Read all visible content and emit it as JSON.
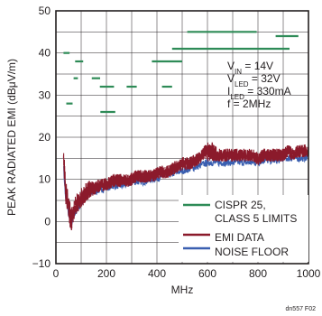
{
  "chart_data": {
    "type": "line",
    "xlabel": "MHz",
    "ylabel": "PEAK RADIATED EMI (dBμV/m)",
    "xlim": [
      0,
      1000
    ],
    "ylim": [
      -10,
      50
    ],
    "xticks": [
      0,
      200,
      400,
      600,
      800,
      1000
    ],
    "yticks": [
      -10,
      0,
      10,
      20,
      30,
      40,
      50
    ],
    "grid": true,
    "legend_position": "bottom-right",
    "annotations": [
      {
        "main": "V",
        "sub": "IN",
        "rest": " = 14V"
      },
      {
        "main": "V",
        "sub": "LED",
        "rest": " = 32V"
      },
      {
        "main": "I",
        "sub": "LED",
        "rest": " = 330mA"
      },
      {
        "main": "f = 2MHz",
        "sub": "",
        "rest": ""
      }
    ],
    "figure_id": "dn557 F02",
    "colors": {
      "limits": "#2e8b57",
      "emi": "#8b1a2b",
      "noise": "#3a5fb0",
      "grid": "#231f20",
      "axis": "#231f20"
    },
    "legend": [
      {
        "lines": [
          "CISPR 25,",
          "CLASS 5 LIMITS"
        ],
        "color": "#2e8b57"
      },
      {
        "lines": [
          "EMI DATA"
        ],
        "color": "#8b1a2b"
      },
      {
        "lines": [
          "NOISE FLOOR"
        ],
        "color": "#3a5fb0"
      }
    ],
    "series": [
      {
        "name": "CISPR 25, CLASS 5 LIMITS",
        "kind": "segments",
        "segments": [
          {
            "x": [
              30,
              54
            ],
            "y": 40
          },
          {
            "x": [
              41,
              66
            ],
            "y": 28
          },
          {
            "x": [
              70,
              87
            ],
            "y": 34
          },
          {
            "x": [
              76,
              108
            ],
            "y": 38
          },
          {
            "x": [
              142,
              175
            ],
            "y": 34
          },
          {
            "x": [
              174,
              230
            ],
            "y": 32
          },
          {
            "x": [
              176,
              235
            ],
            "y": 26
          },
          {
            "x": [
              280,
              320
            ],
            "y": 32
          },
          {
            "x": [
              380,
              500
            ],
            "y": 38
          },
          {
            "x": [
              420,
              460
            ],
            "y": 32
          },
          {
            "x": [
              460,
              925
            ],
            "y": 41
          },
          {
            "x": [
              520,
              795
            ],
            "y": 45
          },
          {
            "x": [
              870,
              960
            ],
            "y": 44
          }
        ]
      },
      {
        "name": "EMI DATA",
        "x": [
          30,
          38,
          45,
          52,
          60,
          68,
          76,
          84,
          92,
          100,
          115,
          130,
          150,
          175,
          200,
          230,
          260,
          290,
          320,
          350,
          380,
          410,
          440,
          470,
          500,
          530,
          560,
          580,
          600,
          620,
          640,
          660,
          680,
          700,
          720,
          740,
          760,
          780,
          800,
          820,
          840,
          860,
          880,
          900,
          920,
          940,
          960,
          980,
          1000
        ],
        "y": [
          16,
          8,
          6,
          3,
          1,
          2,
          4,
          5,
          5,
          6,
          7,
          8,
          8,
          9,
          9,
          10,
          10,
          10,
          11,
          11,
          11,
          12,
          12,
          13,
          14,
          14,
          15,
          16,
          17,
          17,
          16,
          16,
          16,
          16,
          16,
          16,
          16,
          16,
          15,
          16,
          16,
          16,
          16,
          16,
          17,
          16,
          17,
          17,
          17
        ],
        "band": [
          3,
          4,
          4,
          4,
          4,
          3,
          3,
          3,
          3,
          3,
          3,
          3,
          2,
          2,
          2,
          2,
          2,
          2,
          2,
          2,
          2,
          2,
          2,
          2,
          2,
          2,
          2,
          2,
          3,
          3,
          2,
          2,
          2,
          2,
          2,
          2,
          2,
          2,
          2,
          2,
          2,
          2,
          2,
          2,
          2,
          2,
          2,
          2,
          2
        ]
      },
      {
        "name": "NOISE FLOOR",
        "x": [
          30,
          38,
          45,
          52,
          60,
          68,
          76,
          84,
          92,
          100,
          115,
          130,
          150,
          175,
          200,
          230,
          260,
          290,
          320,
          350,
          380,
          410,
          440,
          470,
          500,
          530,
          560,
          580,
          600,
          620,
          640,
          660,
          680,
          700,
          720,
          740,
          760,
          780,
          800,
          820,
          840,
          860,
          880,
          900,
          920,
          940,
          960,
          980,
          1000
        ],
        "y": [
          14,
          6,
          4,
          1,
          -0.5,
          0.5,
          2,
          3,
          3.5,
          4.5,
          5.5,
          6.5,
          7,
          7.5,
          8,
          8.5,
          8.5,
          9,
          9.5,
          9.5,
          10,
          10.5,
          11,
          11.5,
          12,
          12.5,
          13,
          13.5,
          14,
          14,
          14,
          14,
          14,
          14,
          14,
          14,
          14,
          14,
          14,
          14.5,
          14.5,
          14.5,
          14.5,
          15,
          15,
          15,
          15,
          15,
          15.5
        ]
      }
    ]
  }
}
